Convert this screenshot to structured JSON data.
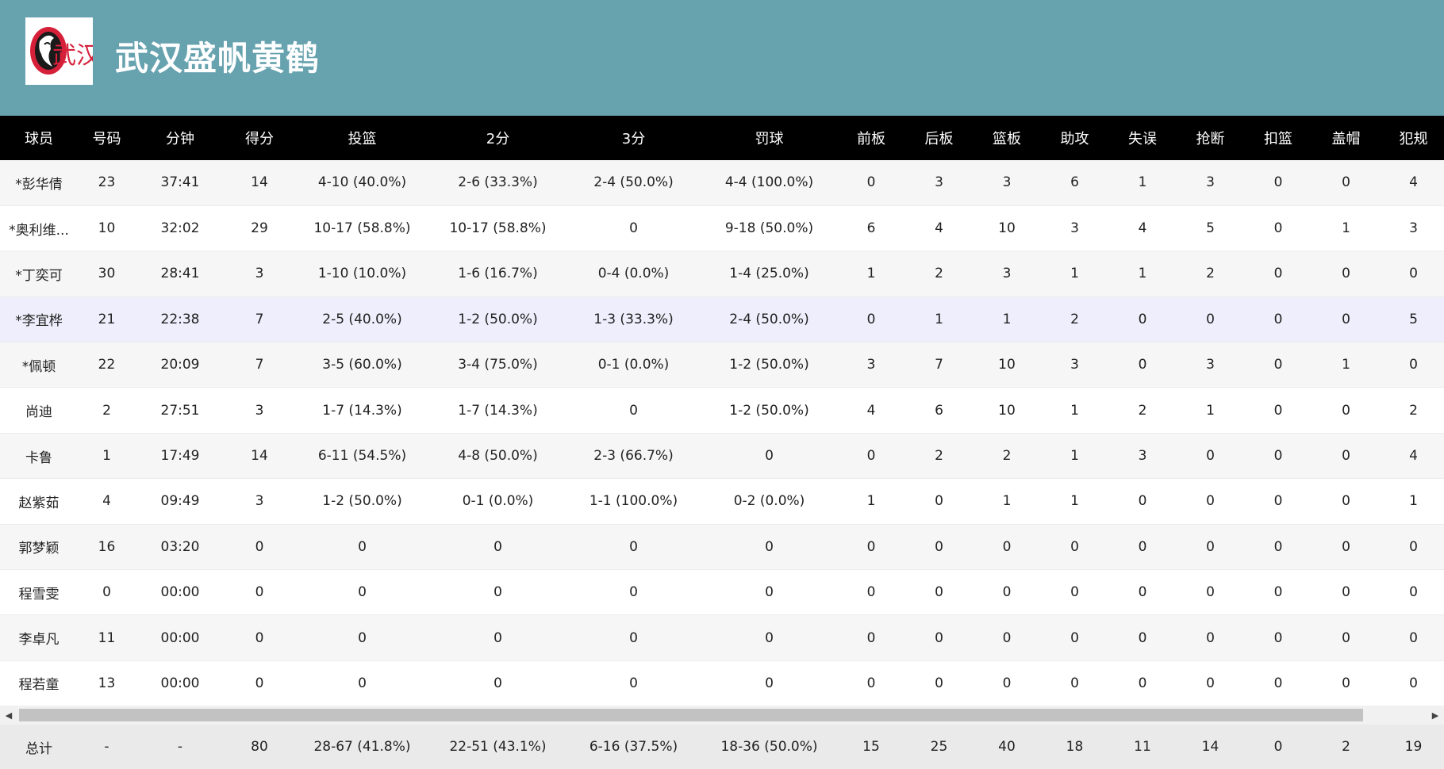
{
  "team": {
    "name": "武汉盛帆黄鹤",
    "logo_text": "武汉"
  },
  "colors": {
    "header_bg": "#67a2af",
    "table_header_bg": "#000000",
    "highlight_row": "#eeeefc",
    "logo_red": "#d6203a"
  },
  "columns": [
    "球员",
    "号码",
    "分钟",
    "得分",
    "投篮",
    "2分",
    "3分",
    "罚球",
    "前板",
    "后板",
    "篮板",
    "助攻",
    "失误",
    "抢断",
    "扣篮",
    "盖帽",
    "犯规"
  ],
  "rows": [
    [
      "*彭华倩",
      "23",
      "37:41",
      "14",
      "4-10 (40.0%)",
      "2-6 (33.3%)",
      "2-4 (50.0%)",
      "4-4 (100.0%)",
      "0",
      "3",
      "3",
      "6",
      "1",
      "3",
      "0",
      "0",
      "4"
    ],
    [
      "*奥利维...",
      "10",
      "32:02",
      "29",
      "10-17 (58.8%)",
      "10-17 (58.8%)",
      "0",
      "9-18 (50.0%)",
      "6",
      "4",
      "10",
      "3",
      "4",
      "5",
      "0",
      "1",
      "3"
    ],
    [
      "*丁奕可",
      "30",
      "28:41",
      "3",
      "1-10 (10.0%)",
      "1-6 (16.7%)",
      "0-4 (0.0%)",
      "1-4 (25.0%)",
      "1",
      "2",
      "3",
      "1",
      "1",
      "2",
      "0",
      "0",
      "0"
    ],
    [
      "*李宜桦",
      "21",
      "22:38",
      "7",
      "2-5 (40.0%)",
      "1-2 (50.0%)",
      "1-3 (33.3%)",
      "2-4 (50.0%)",
      "0",
      "1",
      "1",
      "2",
      "0",
      "0",
      "0",
      "0",
      "5"
    ],
    [
      "*佩顿",
      "22",
      "20:09",
      "7",
      "3-5 (60.0%)",
      "3-4 (75.0%)",
      "0-1 (0.0%)",
      "1-2 (50.0%)",
      "3",
      "7",
      "10",
      "3",
      "0",
      "3",
      "0",
      "1",
      "0"
    ],
    [
      "尚迪",
      "2",
      "27:51",
      "3",
      "1-7 (14.3%)",
      "1-7 (14.3%)",
      "0",
      "1-2 (50.0%)",
      "4",
      "6",
      "10",
      "1",
      "2",
      "1",
      "0",
      "0",
      "2"
    ],
    [
      "卡鲁",
      "1",
      "17:49",
      "14",
      "6-11 (54.5%)",
      "4-8 (50.0%)",
      "2-3 (66.7%)",
      "0",
      "0",
      "2",
      "2",
      "1",
      "3",
      "0",
      "0",
      "0",
      "4"
    ],
    [
      "赵紫茹",
      "4",
      "09:49",
      "3",
      "1-2 (50.0%)",
      "0-1 (0.0%)",
      "1-1 (100.0%)",
      "0-2 (0.0%)",
      "1",
      "0",
      "1",
      "1",
      "0",
      "0",
      "0",
      "0",
      "1"
    ],
    [
      "郭梦颖",
      "16",
      "03:20",
      "0",
      "0",
      "0",
      "0",
      "0",
      "0",
      "0",
      "0",
      "0",
      "0",
      "0",
      "0",
      "0",
      "0"
    ],
    [
      "程雪雯",
      "0",
      "00:00",
      "0",
      "0",
      "0",
      "0",
      "0",
      "0",
      "0",
      "0",
      "0",
      "0",
      "0",
      "0",
      "0",
      "0"
    ],
    [
      "李卓凡",
      "11",
      "00:00",
      "0",
      "0",
      "0",
      "0",
      "0",
      "0",
      "0",
      "0",
      "0",
      "0",
      "0",
      "0",
      "0",
      "0"
    ],
    [
      "程若童",
      "13",
      "00:00",
      "0",
      "0",
      "0",
      "0",
      "0",
      "0",
      "0",
      "0",
      "0",
      "0",
      "0",
      "0",
      "0",
      "0"
    ]
  ],
  "highlight_row_index": 3,
  "totals": [
    "总计",
    "-",
    "-",
    "80",
    "28-67 (41.8%)",
    "22-51 (43.1%)",
    "6-16 (37.5%)",
    "18-36 (50.0%)",
    "15",
    "25",
    "40",
    "18",
    "11",
    "14",
    "0",
    "2",
    "19"
  ],
  "scrollbar": {
    "left_arrow": "◀",
    "right_arrow": "▶"
  }
}
